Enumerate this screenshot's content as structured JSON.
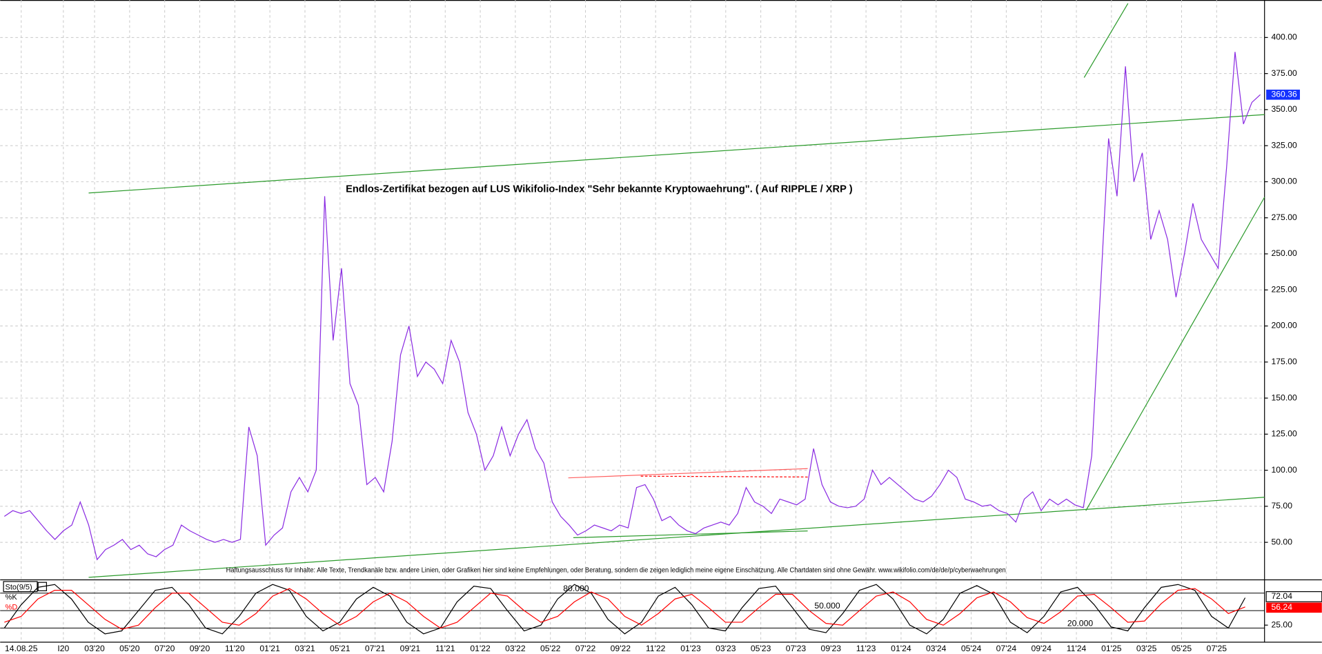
{
  "chart_data": [
    {
      "type": "line",
      "title": "Endlos-Zertifikat bezogen auf LUS Wikifolio-Index \"Sehr bekannte Kryptowaehrung\". ( Auf RIPPLE / XRP )",
      "note": "Haftungsausschluss für Inhalte: Alle Texte, Trendkanäle bzw. andere Linien, oder Grafiken hier sind keine Empfehlungen, oder Beratung, sondern die zeigen lediglich meine eigene Einschätzung. Alle Chartdaten sind ohne Gewähr.  www.wikifolio.com/de/de/p/cyberwaehrungen",
      "x_labels": [
        "14.08.25",
        "I20",
        "03'20",
        "05'20",
        "07'20",
        "09'20",
        "11'20",
        "01'21",
        "03'21",
        "05'21",
        "07'21",
        "09'21",
        "11'21",
        "01'22",
        "03'22",
        "05'22",
        "07'22",
        "09'22",
        "11'22",
        "01'23",
        "03'23",
        "05'23",
        "07'23",
        "09'23",
        "11'23",
        "01'24",
        "03'24",
        "05'24",
        "07'24",
        "09'24",
        "11'24",
        "01'25",
        "03'25",
        "05'25",
        "07'25"
      ],
      "color": "#8a2be2",
      "values": [
        68,
        72,
        70,
        72,
        65,
        58,
        52,
        58,
        62,
        78,
        62,
        38,
        45,
        48,
        52,
        45,
        48,
        42,
        40,
        45,
        48,
        62,
        58,
        55,
        52,
        50,
        52,
        50,
        52,
        130,
        110,
        48,
        55,
        60,
        85,
        95,
        85,
        100,
        290,
        190,
        240,
        160,
        145,
        90,
        95,
        85,
        120,
        180,
        200,
        165,
        175,
        170,
        160,
        190,
        175,
        140,
        125,
        100,
        110,
        130,
        110,
        125,
        135,
        115,
        105,
        78,
        68,
        62,
        55,
        58,
        62,
        60,
        58,
        62,
        60,
        88,
        90,
        80,
        65,
        68,
        62,
        58,
        56,
        60,
        62,
        64,
        62,
        70,
        88,
        78,
        75,
        70,
        80,
        78,
        76,
        80,
        115,
        90,
        78,
        75,
        74,
        75,
        80,
        100,
        90,
        95,
        90,
        85,
        80,
        78,
        82,
        90,
        100,
        95,
        80,
        78,
        75,
        76,
        72,
        70,
        64,
        80,
        85,
        72,
        80,
        76,
        80,
        76,
        74,
        110,
        220,
        330,
        290,
        380,
        300,
        320,
        260,
        280,
        260,
        220,
        250,
        285,
        260,
        250,
        240,
        310,
        390,
        340,
        355,
        360.36
      ],
      "last_label": "360.36",
      "ylim": [
        24,
        426
      ],
      "yticks": [
        {
          "value": 50,
          "label": "50.00"
        },
        {
          "value": 75,
          "label": "75.00"
        },
        {
          "value": 100,
          "label": "100.00"
        },
        {
          "value": 125,
          "label": "125.00"
        },
        {
          "value": 150,
          "label": "150.00"
        },
        {
          "value": 175,
          "label": "175.00"
        },
        {
          "value": 200,
          "label": "200.00"
        },
        {
          "value": 225,
          "label": "225.00"
        },
        {
          "value": 250,
          "label": "250.00"
        },
        {
          "value": 275,
          "label": "275.00"
        },
        {
          "value": 300,
          "label": "300.00"
        },
        {
          "value": 325,
          "label": "325.00"
        },
        {
          "value": 350,
          "label": "350.00"
        },
        {
          "value": 375,
          "label": "375.00"
        },
        {
          "value": 400,
          "label": "400.00"
        }
      ],
      "grid": true
    },
    {
      "type": "line",
      "label": "Sto(9/5)",
      "series": [
        {
          "name": "%K",
          "color": "#000000",
          "last_label": "72.04",
          "values": [
            20,
            60,
            90,
            95,
            70,
            30,
            10,
            15,
            50,
            85,
            90,
            60,
            20,
            10,
            40,
            80,
            95,
            85,
            40,
            15,
            30,
            70,
            90,
            75,
            30,
            10,
            20,
            65,
            92,
            88,
            50,
            15,
            25,
            70,
            95,
            80,
            35,
            10,
            30,
            75,
            90,
            60,
            20,
            15,
            55,
            88,
            92,
            55,
            18,
            12,
            45,
            85,
            95,
            70,
            25,
            10,
            35,
            80,
            93,
            78,
            30,
            12,
            40,
            82,
            90,
            60,
            22,
            15,
            55,
            90,
            95,
            85,
            40,
            20,
            72.04
          ]
        },
        {
          "name": "%D",
          "color": "#ff0000",
          "last_label": "56.24",
          "values": [
            30,
            40,
            70,
            85,
            85,
            60,
            35,
            18,
            25,
            55,
            80,
            80,
            55,
            30,
            25,
            45,
            75,
            88,
            70,
            45,
            25,
            40,
            65,
            80,
            65,
            40,
            20,
            30,
            55,
            80,
            75,
            50,
            30,
            40,
            65,
            82,
            70,
            40,
            25,
            45,
            70,
            78,
            55,
            30,
            30,
            55,
            78,
            78,
            50,
            28,
            25,
            50,
            75,
            82,
            65,
            35,
            25,
            45,
            72,
            82,
            65,
            38,
            28,
            48,
            75,
            78,
            55,
            30,
            32,
            62,
            85,
            88,
            70,
            45,
            56.24
          ]
        }
      ],
      "levels": [
        {
          "value": 80,
          "label": "80.000"
        },
        {
          "value": 50,
          "label": "50.000"
        },
        {
          "value": 20,
          "label": "20.000"
        }
      ],
      "ylim": [
        0,
        100
      ],
      "yticks": [
        {
          "value": 25,
          "label": "25.00"
        }
      ]
    }
  ]
}
